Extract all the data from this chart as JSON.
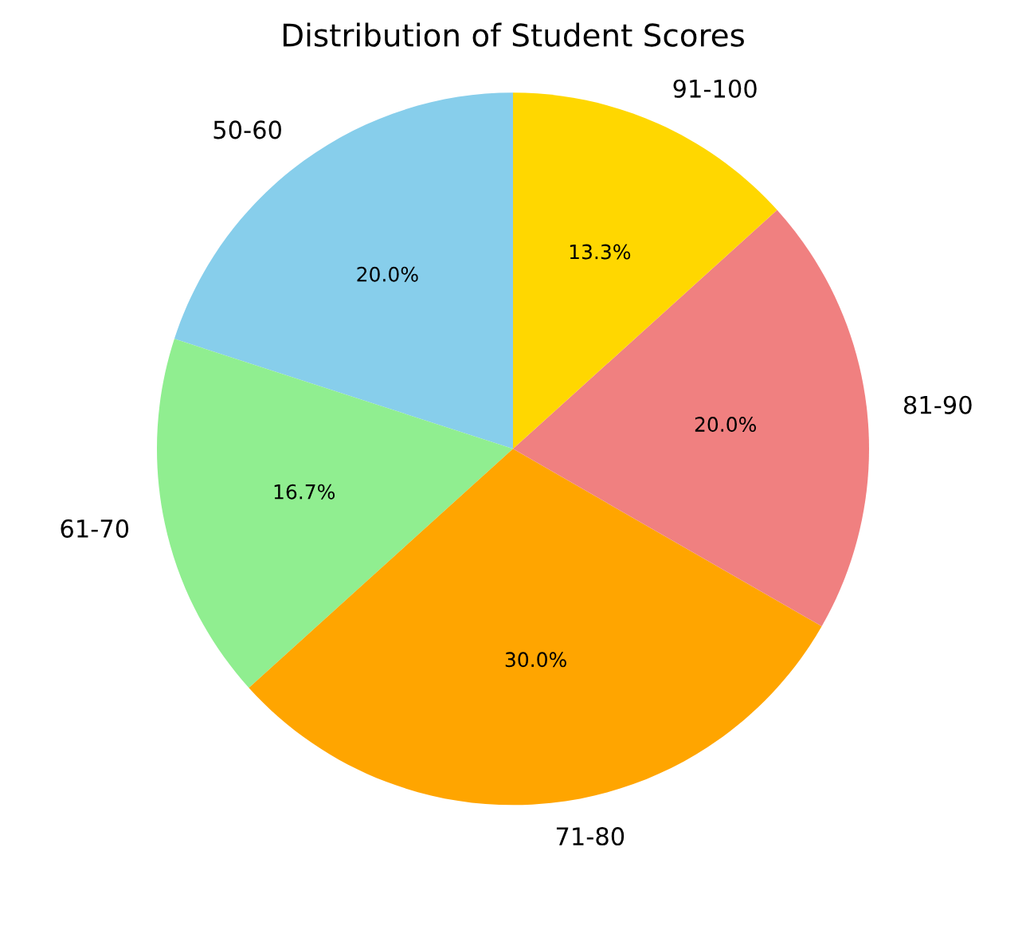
{
  "chart_data": {
    "type": "pie",
    "title": "Distribution of Student Scores",
    "categories": [
      "50-60",
      "61-70",
      "71-80",
      "81-90",
      "91-100"
    ],
    "values": [
      20.0,
      16.7,
      30.0,
      20.0,
      13.3
    ],
    "value_labels": [
      "20.0%",
      "16.7%",
      "30.0%",
      "20.0%",
      "13.3%"
    ],
    "colors": [
      "#87ceeb",
      "#90ee90",
      "#ffa500",
      "#f08080",
      "#ffd700"
    ]
  }
}
